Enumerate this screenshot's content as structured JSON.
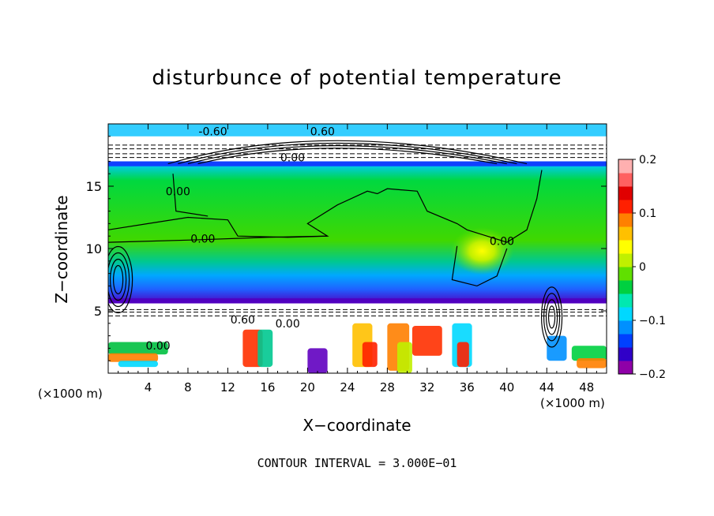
{
  "chart_data": {
    "type": "heatmap",
    "title": "disturbunce of potential temperature",
    "xlabel": "X−coordinate",
    "ylabel": "Z−coordinate",
    "x_unit_label": "(×1000 m)",
    "z_unit_label": "(×1000 m)",
    "xlim": [
      0,
      50
    ],
    "zlim": [
      0,
      20
    ],
    "x_ticks": [
      4,
      8,
      12,
      16,
      20,
      24,
      28,
      32,
      36,
      40,
      44,
      48
    ],
    "x_tick_labels": [
      "4",
      "8",
      "12",
      "16",
      "20",
      "24",
      "28",
      "32",
      "36",
      "40",
      "44",
      "48"
    ],
    "z_ticks": [
      5,
      10,
      15
    ],
    "z_tick_labels": [
      "5",
      "10",
      "15"
    ],
    "colorbar": {
      "range": [
        -0.2,
        0.2
      ],
      "ticks": [
        0.2,
        0.1,
        0,
        -0.1,
        -0.2
      ],
      "tick_labels": [
        "0.2",
        "0.1",
        "0",
        "−0.1",
        "−0.2"
      ],
      "colors": [
        "#8f00a8",
        "#3000c8",
        "#0040ff",
        "#0090ff",
        "#00d8ff",
        "#00e8b0",
        "#00d040",
        "#60e000",
        "#c0f000",
        "#ffff00",
        "#ffc000",
        "#ff8000",
        "#ff2000",
        "#e00000",
        "#ff6060",
        "#ffb0b0"
      ]
    },
    "contour_labels": [
      {
        "text": "0.00",
        "x": 9.5,
        "z": 10.8
      },
      {
        "text": "0.00",
        "x": 18.5,
        "z": 17.3
      },
      {
        "text": "0.00",
        "x": 39.5,
        "z": 10.6
      },
      {
        "text": "0.00",
        "x": 7,
        "z": 14.6
      },
      {
        "text": "0.60",
        "x": 21.5,
        "z": 19.4
      },
      {
        "text": "0.60",
        "x": 13.5,
        "z": 4.3
      },
      {
        "text": "-0.60",
        "x": 10.5,
        "z": 19.4
      },
      {
        "text": "0.00",
        "x": 5,
        "z": 2.2
      },
      {
        "text": "0.00",
        "x": 18,
        "z": 4.0
      }
    ],
    "contour_interval_text": "CONTOUR INTERVAL = 3.000E−01"
  }
}
